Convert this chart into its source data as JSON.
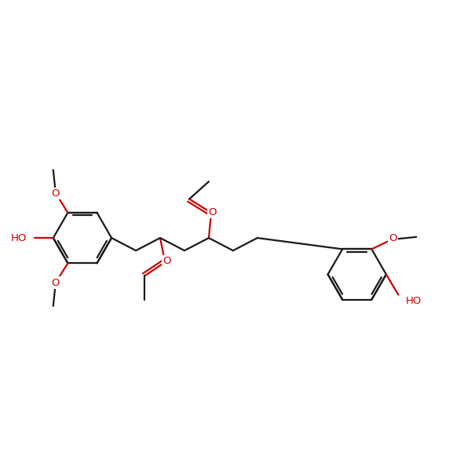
{
  "bg": "#ffffff",
  "bc": "#1a1a1a",
  "hc": "#cc0000",
  "lw": 1.6,
  "fs": 9.5,
  "figsize": [
    6.0,
    6.0
  ],
  "dpi": 100,
  "xlim": [
    0.2,
    9.8
  ],
  "ylim": [
    1.5,
    8.5
  ]
}
